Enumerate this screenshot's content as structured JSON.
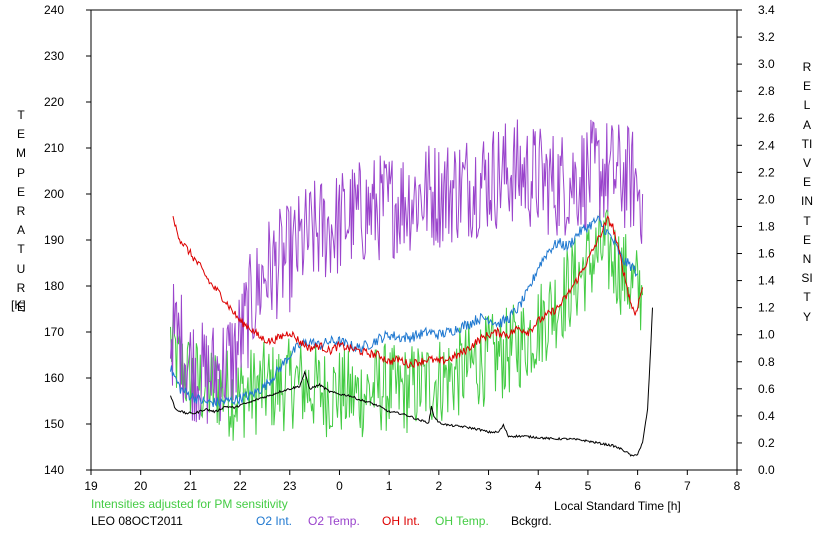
{
  "chart_data": {
    "type": "line",
    "left_axis": {
      "label": "TEMPERATURE",
      "unit": "[K]",
      "range": [
        140,
        240
      ],
      "ticks": [
        140,
        150,
        160,
        170,
        180,
        190,
        200,
        210,
        220,
        230,
        240
      ]
    },
    "right_axis": {
      "label": "RELATIVE INTENSITY",
      "range": [
        0.0,
        3.4
      ],
      "ticks": [
        "0.0",
        "0.2",
        "0.4",
        "0.6",
        "0.8",
        "1.0",
        "1.2",
        "1.4",
        "1.6",
        "1.8",
        "2.0",
        "2.2",
        "2.4",
        "2.6",
        "2.8",
        "3.0",
        "3.2",
        "3.4"
      ]
    },
    "x_axis": {
      "label": "Local Standard Time [h]",
      "range": [
        19,
        32
      ],
      "ticks": [
        {
          "v": 19,
          "label": "19"
        },
        {
          "v": 20,
          "label": "20"
        },
        {
          "v": 21,
          "label": "21"
        },
        {
          "v": 22,
          "label": "22"
        },
        {
          "v": 23,
          "label": "23"
        },
        {
          "v": 24,
          "label": "0"
        },
        {
          "v": 25,
          "label": "1"
        },
        {
          "v": 26,
          "label": "2"
        },
        {
          "v": 27,
          "label": "3"
        },
        {
          "v": 28,
          "label": "4"
        },
        {
          "v": 29,
          "label": "5"
        },
        {
          "v": 30,
          "label": "6"
        },
        {
          "v": 31,
          "label": "7"
        },
        {
          "v": 32,
          "label": "8"
        }
      ]
    },
    "note": "Intensities adjusted for PM sensitivity",
    "station": "LEO 08OCT2011",
    "grid": false,
    "legend_position": "bottom",
    "series": [
      {
        "name": "O2 Int.",
        "color": "#1f78d0",
        "axis": "right",
        "noise": 0.04,
        "points": [
          [
            20.6,
            0.75
          ],
          [
            20.8,
            0.6
          ],
          [
            21.0,
            0.55
          ],
          [
            21.3,
            0.5
          ],
          [
            21.6,
            0.5
          ],
          [
            21.9,
            0.52
          ],
          [
            22.2,
            0.55
          ],
          [
            22.5,
            0.62
          ],
          [
            22.8,
            0.75
          ],
          [
            23.0,
            0.85
          ],
          [
            23.2,
            0.92
          ],
          [
            23.4,
            0.95
          ],
          [
            23.6,
            0.92
          ],
          [
            23.8,
            0.95
          ],
          [
            24.0,
            0.95
          ],
          [
            24.2,
            0.92
          ],
          [
            24.4,
            0.9
          ],
          [
            24.6,
            0.93
          ],
          [
            24.8,
            0.97
          ],
          [
            25.0,
            1.0
          ],
          [
            25.2,
            0.98
          ],
          [
            25.4,
            0.98
          ],
          [
            25.6,
            1.0
          ],
          [
            25.8,
            1.02
          ],
          [
            26.0,
            1.0
          ],
          [
            26.2,
            1.02
          ],
          [
            26.4,
            1.05
          ],
          [
            26.6,
            1.08
          ],
          [
            26.8,
            1.12
          ],
          [
            27.0,
            1.12
          ],
          [
            27.2,
            1.08
          ],
          [
            27.4,
            1.12
          ],
          [
            27.6,
            1.2
          ],
          [
            27.8,
            1.32
          ],
          [
            28.0,
            1.5
          ],
          [
            28.2,
            1.62
          ],
          [
            28.4,
            1.68
          ],
          [
            28.6,
            1.65
          ],
          [
            28.8,
            1.75
          ],
          [
            29.0,
            1.8
          ],
          [
            29.2,
            1.85
          ],
          [
            29.3,
            1.8
          ],
          [
            29.5,
            1.7
          ],
          [
            29.7,
            1.55
          ],
          [
            29.9,
            1.5
          ],
          [
            30.0,
            1.45
          ]
        ]
      },
      {
        "name": "O2 Temp.",
        "color": "#9a44cc",
        "axis": "left",
        "noise": 12,
        "points": [
          [
            20.6,
            170
          ],
          [
            20.8,
            168
          ],
          [
            21.0,
            163
          ],
          [
            21.3,
            160
          ],
          [
            21.6,
            162
          ],
          [
            21.9,
            165
          ],
          [
            22.2,
            175
          ],
          [
            22.5,
            183
          ],
          [
            22.8,
            185
          ],
          [
            23.0,
            186
          ],
          [
            23.3,
            190
          ],
          [
            23.6,
            192
          ],
          [
            23.9,
            193
          ],
          [
            24.2,
            195
          ],
          [
            24.5,
            196
          ],
          [
            24.8,
            197
          ],
          [
            25.1,
            198
          ],
          [
            25.4,
            199
          ],
          [
            25.7,
            200
          ],
          [
            26.0,
            200
          ],
          [
            26.3,
            201
          ],
          [
            26.6,
            202
          ],
          [
            26.9,
            203
          ],
          [
            27.2,
            204
          ],
          [
            27.5,
            205
          ],
          [
            27.8,
            204
          ],
          [
            28.1,
            203
          ],
          [
            28.4,
            202
          ],
          [
            28.7,
            203
          ],
          [
            29.0,
            204
          ],
          [
            29.3,
            205
          ],
          [
            29.6,
            204
          ],
          [
            29.9,
            203
          ],
          [
            30.1,
            200
          ]
        ]
      },
      {
        "name": "OH Int.",
        "color": "#dd0000",
        "axis": "right",
        "noise": 0.03,
        "points": [
          [
            20.65,
            1.85
          ],
          [
            20.8,
            1.7
          ],
          [
            21.0,
            1.6
          ],
          [
            21.2,
            1.5
          ],
          [
            21.4,
            1.38
          ],
          [
            21.6,
            1.3
          ],
          [
            21.8,
            1.2
          ],
          [
            22.0,
            1.1
          ],
          [
            22.2,
            1.05
          ],
          [
            22.4,
            0.98
          ],
          [
            22.6,
            0.95
          ],
          [
            22.8,
            0.98
          ],
          [
            23.0,
            1.02
          ],
          [
            23.2,
            0.95
          ],
          [
            23.4,
            0.9
          ],
          [
            23.6,
            0.92
          ],
          [
            23.8,
            0.88
          ],
          [
            24.0,
            0.92
          ],
          [
            24.2,
            0.9
          ],
          [
            24.4,
            0.88
          ],
          [
            24.6,
            0.86
          ],
          [
            24.8,
            0.85
          ],
          [
            25.0,
            0.8
          ],
          [
            25.2,
            0.82
          ],
          [
            25.4,
            0.78
          ],
          [
            25.6,
            0.8
          ],
          [
            25.8,
            0.82
          ],
          [
            26.0,
            0.8
          ],
          [
            26.2,
            0.82
          ],
          [
            26.4,
            0.85
          ],
          [
            26.6,
            0.9
          ],
          [
            26.8,
            0.96
          ],
          [
            27.0,
            1.0
          ],
          [
            27.2,
            1.02
          ],
          [
            27.4,
            1.0
          ],
          [
            27.6,
            1.05
          ],
          [
            27.8,
            1.02
          ],
          [
            28.0,
            1.1
          ],
          [
            28.2,
            1.15
          ],
          [
            28.4,
            1.2
          ],
          [
            28.6,
            1.3
          ],
          [
            28.8,
            1.42
          ],
          [
            29.0,
            1.55
          ],
          [
            29.2,
            1.7
          ],
          [
            29.4,
            1.85
          ],
          [
            29.5,
            1.8
          ],
          [
            29.7,
            1.5
          ],
          [
            29.85,
            1.25
          ],
          [
            29.95,
            1.15
          ],
          [
            30.1,
            1.35
          ]
        ]
      },
      {
        "name": "OH Temp.",
        "color": "#44cc44",
        "axis": "left",
        "noise": 10,
        "points": [
          [
            20.6,
            168
          ],
          [
            20.8,
            162
          ],
          [
            21.0,
            160
          ],
          [
            21.3,
            158
          ],
          [
            21.6,
            158
          ],
          [
            21.9,
            156
          ],
          [
            22.2,
            157
          ],
          [
            22.5,
            158
          ],
          [
            22.8,
            158
          ],
          [
            23.1,
            159
          ],
          [
            23.4,
            158
          ],
          [
            23.7,
            157
          ],
          [
            24.0,
            157
          ],
          [
            24.3,
            156
          ],
          [
            24.6,
            157
          ],
          [
            24.9,
            158
          ],
          [
            25.2,
            157
          ],
          [
            25.5,
            158
          ],
          [
            25.8,
            159
          ],
          [
            26.1,
            160
          ],
          [
            26.4,
            161
          ],
          [
            26.7,
            163
          ],
          [
            27.0,
            164
          ],
          [
            27.3,
            165
          ],
          [
            27.6,
            167
          ],
          [
            27.9,
            170
          ],
          [
            28.2,
            174
          ],
          [
            28.5,
            178
          ],
          [
            28.8,
            182
          ],
          [
            29.1,
            186
          ],
          [
            29.3,
            188
          ],
          [
            29.5,
            186
          ],
          [
            29.7,
            183
          ],
          [
            29.9,
            180
          ],
          [
            30.1,
            178
          ]
        ]
      },
      {
        "name": "Bckgrd.",
        "color": "#000000",
        "axis": "right",
        "noise": 0.008,
        "points": [
          [
            20.6,
            0.55
          ],
          [
            20.7,
            0.45
          ],
          [
            20.9,
            0.42
          ],
          [
            21.1,
            0.42
          ],
          [
            21.3,
            0.45
          ],
          [
            21.5,
            0.43
          ],
          [
            21.7,
            0.47
          ],
          [
            21.9,
            0.46
          ],
          [
            22.0,
            0.48
          ],
          [
            22.2,
            0.5
          ],
          [
            22.4,
            0.53
          ],
          [
            22.6,
            0.55
          ],
          [
            22.8,
            0.58
          ],
          [
            23.0,
            0.6
          ],
          [
            23.2,
            0.62
          ],
          [
            23.3,
            0.72
          ],
          [
            23.4,
            0.6
          ],
          [
            23.6,
            0.63
          ],
          [
            23.8,
            0.58
          ],
          [
            24.0,
            0.56
          ],
          [
            24.2,
            0.55
          ],
          [
            24.4,
            0.52
          ],
          [
            24.6,
            0.5
          ],
          [
            24.8,
            0.47
          ],
          [
            25.0,
            0.43
          ],
          [
            25.2,
            0.42
          ],
          [
            25.4,
            0.4
          ],
          [
            25.6,
            0.37
          ],
          [
            25.8,
            0.35
          ],
          [
            25.85,
            0.47
          ],
          [
            25.9,
            0.4
          ],
          [
            26.0,
            0.35
          ],
          [
            26.2,
            0.33
          ],
          [
            26.5,
            0.32
          ],
          [
            26.8,
            0.3
          ],
          [
            27.0,
            0.28
          ],
          [
            27.2,
            0.28
          ],
          [
            27.3,
            0.33
          ],
          [
            27.4,
            0.25
          ],
          [
            27.7,
            0.25
          ],
          [
            28.0,
            0.24
          ],
          [
            28.3,
            0.23
          ],
          [
            28.6,
            0.23
          ],
          [
            28.9,
            0.22
          ],
          [
            29.2,
            0.2
          ],
          [
            29.5,
            0.18
          ],
          [
            29.7,
            0.15
          ],
          [
            29.9,
            0.1
          ],
          [
            30.0,
            0.12
          ],
          [
            30.1,
            0.2
          ],
          [
            30.2,
            0.45
          ],
          [
            30.25,
            0.8
          ],
          [
            30.3,
            1.2
          ]
        ]
      }
    ]
  }
}
